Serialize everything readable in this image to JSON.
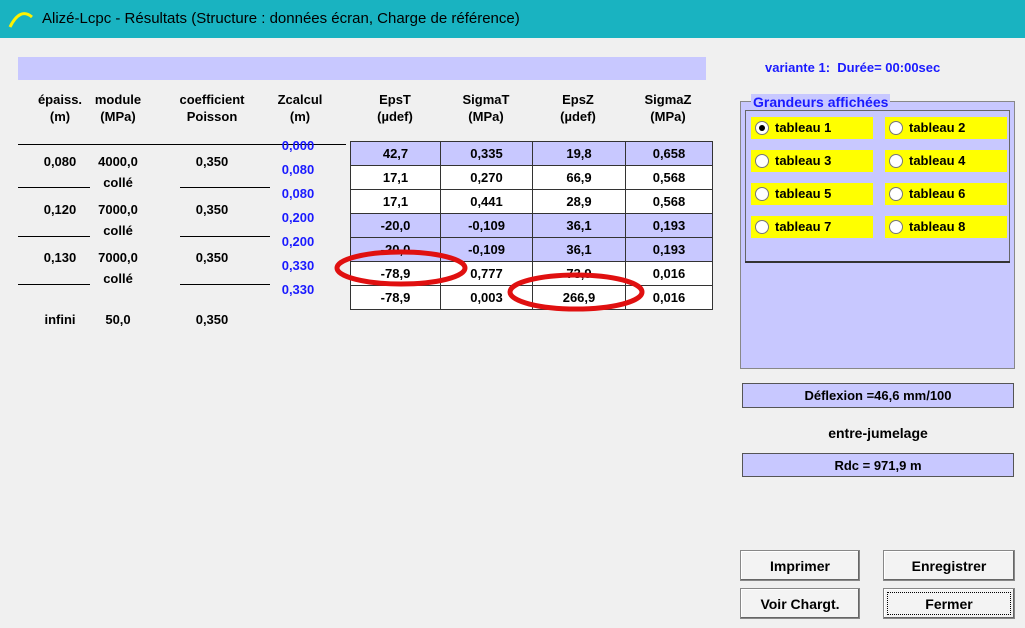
{
  "window": {
    "title": "Alizé-Lcpc - Résultats (Structure : données écran, Charge de référence)"
  },
  "header_info": "variante 1:  Durée= 00:00sec",
  "table": {
    "headers": [
      [
        "épaiss.",
        "(m)"
      ],
      [
        "module",
        "(MPa)"
      ],
      [
        "coefficient",
        "Poisson"
      ],
      [
        "Zcalcul",
        "(m)"
      ],
      [
        "EpsT",
        "(µdef)"
      ],
      [
        "SigmaT",
        "(MPa)"
      ],
      [
        "EpsZ",
        "(µdef)"
      ],
      [
        "SigmaZ",
        "(MPa)"
      ]
    ],
    "layers": [
      [
        "0,080",
        "4000,0",
        "0,350"
      ],
      [
        "0,120",
        "7000,0",
        "0,350"
      ],
      [
        "0,130",
        "7000,0",
        "0,350"
      ],
      [
        "infini",
        "50,0",
        "0,350"
      ]
    ],
    "interfaces": [
      "collé",
      "collé",
      "collé"
    ],
    "zcalcul": [
      "0,000",
      "0,080",
      "0,080",
      "0,200",
      "0,200",
      "0,330",
      "0,330"
    ],
    "rows": [
      [
        "42,7",
        "0,335",
        "19,8",
        "0,658"
      ],
      [
        "17,1",
        "0,270",
        "66,9",
        "0,568"
      ],
      [
        "17,1",
        "0,441",
        "28,9",
        "0,568"
      ],
      [
        "-20,0",
        "-0,109",
        "36,1",
        "0,193"
      ],
      [
        "-20,0",
        "-0,109",
        "36,1",
        "0,193"
      ],
      [
        "-78,9",
        "0,777",
        "73,9",
        "0,016"
      ],
      [
        "-78,9",
        "0,003",
        "266,9",
        "0,016"
      ]
    ]
  },
  "panel": {
    "title": "Grandeurs affichées",
    "options": [
      "tableau 1",
      "tableau 2",
      "tableau 3",
      "tableau 4",
      "tableau 5",
      "tableau 6",
      "tableau 7",
      "tableau 8"
    ],
    "selected": 0
  },
  "deflexion": "Déflexion =46,6 mm/100",
  "position": "entre-jumelage",
  "rdc": "Rdc = 971,9 m",
  "buttons": [
    "Imprimer",
    "Enregistrer",
    "Voir Chargt.",
    "Fermer"
  ]
}
